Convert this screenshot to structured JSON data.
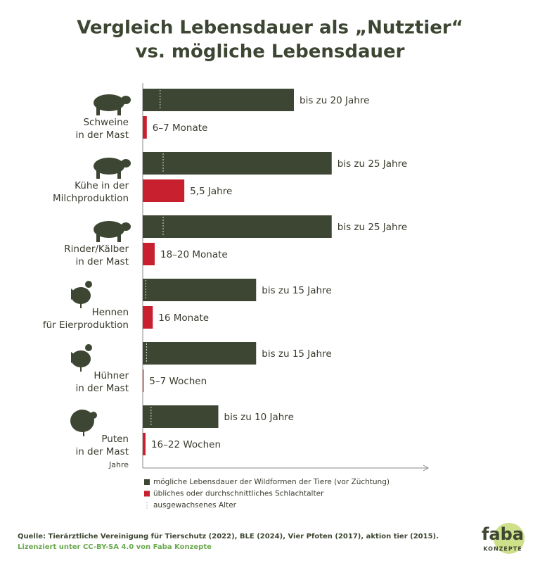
{
  "chart_data": {
    "type": "bar",
    "title": [
      "Vergleich Lebensdauer als „Nutztier“",
      "vs. mögliche Lebensdauer"
    ],
    "categories": [
      [
        "Schweine",
        "in der Mast"
      ],
      [
        "Kühe in der",
        "Milchproduktion"
      ],
      [
        "Rinder/Kälber",
        "in der Mast"
      ],
      [
        "Hennen",
        "für Eierproduktion"
      ],
      [
        "Hühner",
        "in der Mast"
      ],
      [
        "Puten",
        "in der Mast"
      ]
    ],
    "x_label": "Jahre",
    "xlim": [
      0,
      38
    ],
    "series": [
      {
        "name": "mögliche Lebensdauer der Wildformen der Tiere (vor Züchtung)",
        "color": "#3d4632",
        "values": [
          20,
          25,
          25,
          15,
          15,
          10
        ],
        "value_labels": [
          "bis zu 20 Jahre",
          "bis zu 25 Jahre",
          "bis zu 25 Jahre",
          "bis zu 15 Jahre",
          "bis zu 15 Jahre",
          "bis zu 10 Jahre"
        ]
      },
      {
        "name": "übliches oder durchschnittliches Schlachtalter",
        "color": "#c8202f",
        "values": [
          0.54,
          5.5,
          1.58,
          1.33,
          0.12,
          0.37
        ],
        "value_labels": [
          "6–7 Monate",
          "5,5 Jahre",
          "18–20 Monate",
          "16 Monate",
          "5–7 Wochen",
          "16–22 Wochen"
        ]
      },
      {
        "name": "ausgewachsenes Alter",
        "color": "#dddddd",
        "values": [
          2.3,
          2.7,
          2.7,
          0.4,
          0.5,
          1.1
        ]
      }
    ],
    "source": "Quelle: Tierärztliche Vereinigung für Tierschutz (2022), BLE (2024), Vier Pfoten (2017), aktion tier (2015).",
    "license": "Lizenziert unter CC-BY-SA 4.0 von Faba Konzepte",
    "logo": [
      "faba",
      "KONZEPTE"
    ]
  }
}
